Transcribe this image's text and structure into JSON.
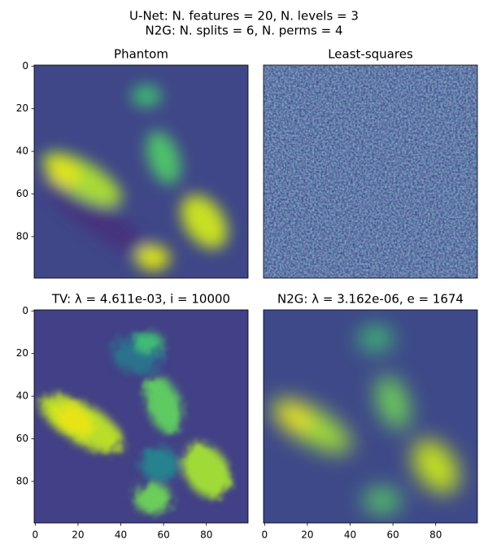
{
  "suptitle": [
    "U-Net: N. features = 20, N. levels = 3",
    "N2G: N. splits = 6, N. perms = 4"
  ],
  "chart_data": [
    {
      "type": "image",
      "title": "Phantom",
      "xlim": [
        -0.5,
        99.5
      ],
      "ylim": [
        99.5,
        -0.5
      ],
      "yticks": [
        0,
        20,
        40,
        60,
        80
      ]
    },
    {
      "type": "image",
      "title": "Least-squares",
      "xlim": [
        -0.5,
        99.5
      ],
      "ylim": [
        99.5,
        -0.5
      ]
    },
    {
      "type": "image",
      "title": "TV: λ = 4.611e-03, i = 10000",
      "xlim": [
        -0.5,
        99.5
      ],
      "ylim": [
        99.5,
        -0.5
      ],
      "xticks": [
        0,
        20,
        40,
        60,
        80
      ],
      "yticks": [
        0,
        20,
        40,
        60,
        80
      ]
    },
    {
      "type": "image",
      "title": "N2G: λ = 3.162e-06, e = 1674",
      "xlim": [
        -0.5,
        99.5
      ],
      "ylim": [
        99.5,
        -0.5
      ],
      "xticks": [
        0,
        20,
        40,
        60,
        80
      ]
    }
  ]
}
